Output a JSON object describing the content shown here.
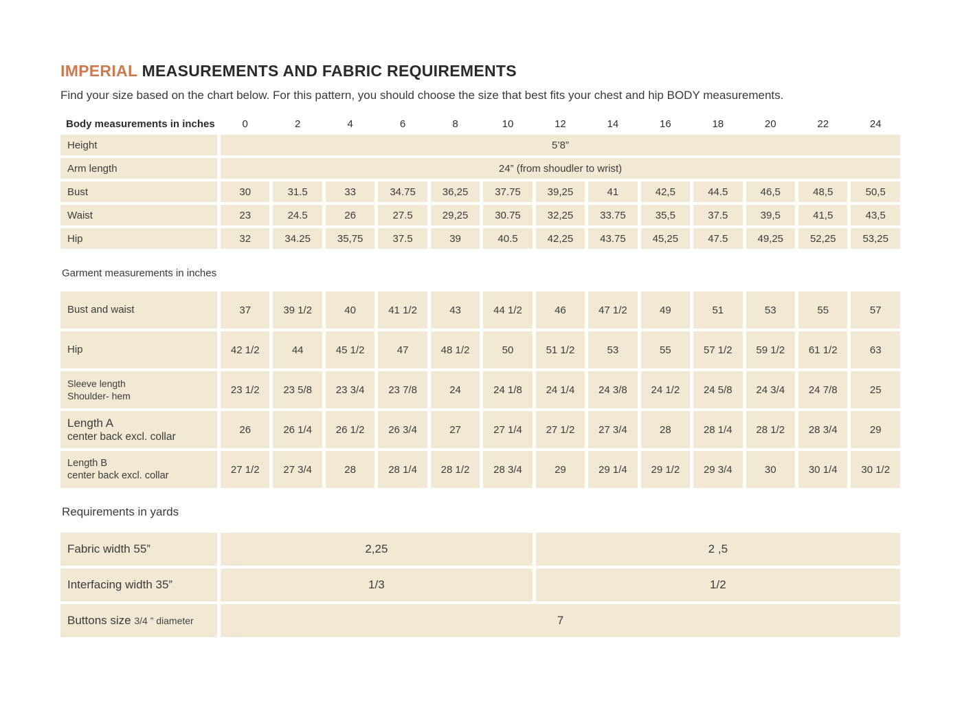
{
  "colors": {
    "accent_orange": "#cc7a4e",
    "cell_beige": "#f2e9d5",
    "text_dark": "#3d3c38"
  },
  "header": {
    "title_highlight": "IMPERIAL",
    "title_rest": " MEASUREMENTS AND FABRIC REQUIREMENTS",
    "subtitle": "Find your size based on the chart below. For this pattern, you should choose the size that best fits your chest and hip BODY measurements."
  },
  "sizes_header": {
    "label": "Body measurements in inches",
    "sizes": [
      "0",
      "2",
      "4",
      "6",
      "8",
      "10",
      "12",
      "14",
      "16",
      "18",
      "20",
      "22",
      "24"
    ]
  },
  "body": {
    "height": {
      "label": "Height",
      "value": "5’8”"
    },
    "arm": {
      "label": "Arm length",
      "value": "24” (from shoudler to wrist)"
    },
    "bust": {
      "label": "Bust",
      "values": [
        "30",
        "31.5",
        "33",
        "34.75",
        "36,25",
        "37.75",
        "39,25",
        "41",
        "42,5",
        "44.5",
        "46,5",
        "48,5",
        "50,5"
      ]
    },
    "waist": {
      "label": "Waist",
      "values": [
        "23",
        "24.5",
        "26",
        "27.5",
        "29,25",
        "30.75",
        "32,25",
        "33.75",
        "35,5",
        "37.5",
        "39,5",
        "41,5",
        "43,5"
      ]
    },
    "hip": {
      "label": "Hip",
      "values": [
        "32",
        "34.25",
        "35,75",
        "37.5",
        "39",
        "40.5",
        "42,25",
        "43.75",
        "45,25",
        "47.5",
        "49,25",
        "52,25",
        "53,25"
      ]
    }
  },
  "garment": {
    "heading": "Garment measurements in inches",
    "rows": {
      "bust_waist": {
        "label": "Bust and waist",
        "values": [
          "37",
          "39 1/2",
          "40",
          "41 1/2",
          "43",
          "44 1/2",
          "46",
          "47 1/2",
          "49",
          "51",
          "53",
          "55",
          "57"
        ]
      },
      "hip": {
        "label": "Hip",
        "values": [
          "42 1/2",
          "44",
          "45 1/2",
          "47",
          "48 1/2",
          "50",
          "51 1/2",
          "53",
          "55",
          "57 1/2",
          "59 1/2",
          "61 1/2",
          "63"
        ]
      },
      "sleeve": {
        "label": "Sleeve length",
        "label2": "Shoulder- hem",
        "values": [
          "23 1/2",
          "23 5/8",
          "23 3/4",
          "23 7/8",
          "24",
          "24 1/8",
          "24 1/4",
          "24 3/8",
          "24 1/2",
          "24 5/8",
          "24 3/4",
          "24 7/8",
          "25"
        ]
      },
      "length_a": {
        "label": "Length A",
        "label2": "center back excl. collar",
        "values": [
          "26",
          "26 1/4",
          "26 1/2",
          "26 3/4",
          "27",
          "27 1/4",
          "27 1/2",
          "27 3/4",
          "28",
          "28 1/4",
          "28 1/2",
          "28 3/4",
          "29"
        ]
      },
      "length_b": {
        "label": "Length B",
        "label2": "center back excl. collar",
        "values": [
          "27 1/2",
          "27 3/4",
          "28",
          "28 1/4",
          "28 1/2",
          "28 3/4",
          "29",
          "29 1/4",
          "29 1/2",
          "29 3/4",
          "30",
          "30 1/4",
          "30 1/2"
        ]
      }
    }
  },
  "req": {
    "heading": "Requirements in yards",
    "fabric": {
      "label": "Fabric width 55”",
      "left": "2,25",
      "right": "2 ,5"
    },
    "interfacing": {
      "label": "Interfacing width 35”",
      "left": "1/3",
      "right": "1/2"
    },
    "buttons": {
      "label": "Buttons size",
      "label_small": "3/4 ” diameter",
      "value": "7"
    }
  }
}
